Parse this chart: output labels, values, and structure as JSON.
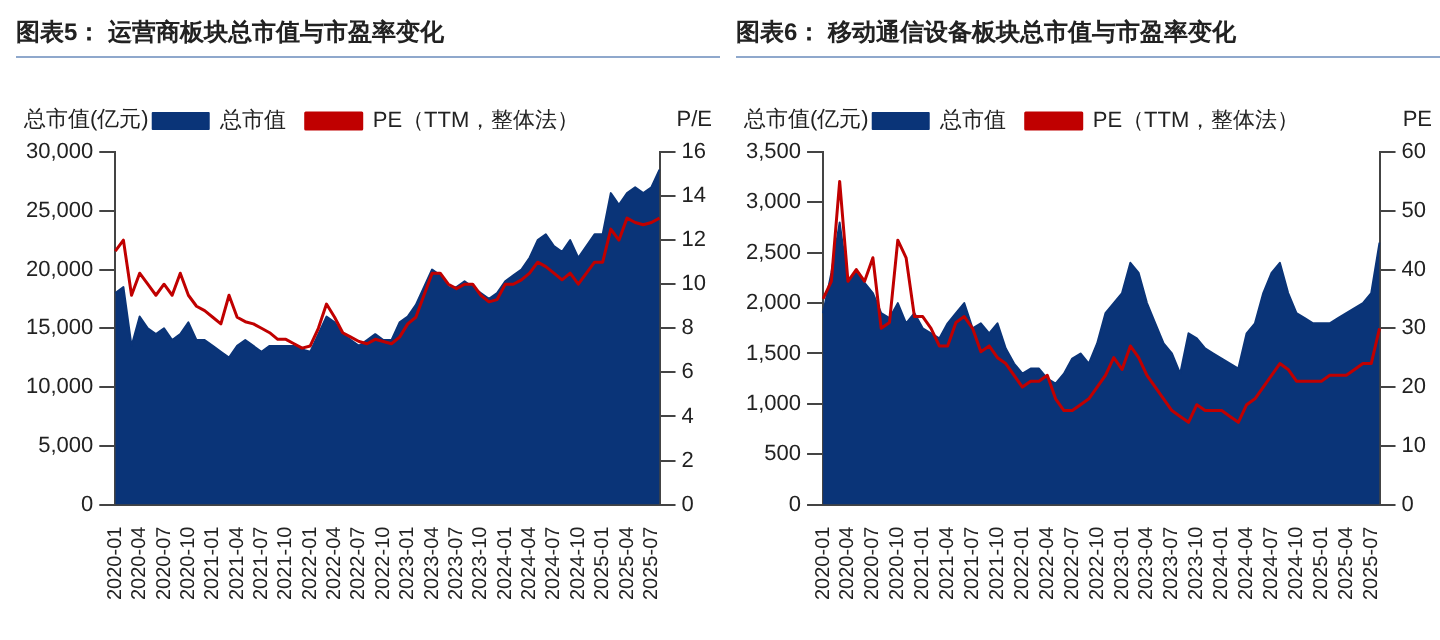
{
  "chart_data": [
    {
      "type": "area",
      "title": "图表5：  运营商板块总市值与市盈率变化",
      "ylabel": "总市值(亿元)",
      "y2label": "P/E",
      "legend": "top",
      "grid": false,
      "marker": "none",
      "categories": [
        "2020-01",
        null,
        null,
        "2020-04",
        null,
        null,
        "2020-07",
        null,
        null,
        "2020-10",
        null,
        null,
        "2021-01",
        null,
        null,
        "2021-04",
        null,
        null,
        "2021-07",
        null,
        null,
        "2021-10",
        null,
        null,
        "2022-01",
        null,
        null,
        "2022-04",
        null,
        null,
        "2022-07",
        null,
        null,
        "2022-10",
        null,
        null,
        "2023-01",
        null,
        null,
        "2023-04",
        null,
        null,
        "2023-07",
        null,
        null,
        "2023-10",
        null,
        null,
        "2024-01",
        null,
        null,
        "2024-04",
        null,
        null,
        "2024-07",
        null,
        null,
        "2024-10",
        null,
        null,
        "2025-01",
        null,
        null,
        "2025-04",
        null,
        null,
        "2025-07",
        null
      ],
      "ylim": [
        0,
        30000
      ],
      "yticks": [
        {
          "value": 0,
          "label": "0"
        },
        {
          "value": 5000,
          "label": "5,000"
        },
        {
          "value": 10000,
          "label": "10,000"
        },
        {
          "value": 15000,
          "label": "15,000"
        },
        {
          "value": 20000,
          "label": "20,000"
        },
        {
          "value": 25000,
          "label": "25,000"
        },
        {
          "value": 30000,
          "label": "30,000"
        }
      ],
      "y2lim": [
        0,
        16
      ],
      "y2ticks": [
        0,
        2,
        4,
        6,
        8,
        10,
        12,
        14,
        16
      ],
      "series": [
        {
          "name": "总市值",
          "type": "area",
          "color": "#0a3478",
          "values": [
            18000,
            18500,
            13500,
            16000,
            15000,
            14500,
            15000,
            14000,
            14500,
            15500,
            14000,
            14000,
            13500,
            13000,
            12500,
            13500,
            14000,
            13500,
            13000,
            13500,
            13500,
            13500,
            13500,
            13200,
            13000,
            14500,
            16000,
            15500,
            14500,
            14000,
            13500,
            14000,
            14500,
            14000,
            14000,
            15500,
            16000,
            17000,
            18500,
            20000,
            19500,
            18500,
            18500,
            19000,
            18500,
            18000,
            17500,
            18000,
            19000,
            19500,
            20000,
            21000,
            22500,
            23000,
            22000,
            21500,
            22500,
            21000,
            22000,
            23000,
            23000,
            26500,
            25500,
            26500,
            27000,
            26500,
            27000,
            28500
          ]
        },
        {
          "name": "PE（TTM，整体法）",
          "type": "line",
          "axis": "y2",
          "color": "#c00000",
          "values": [
            11.5,
            12,
            9.5,
            10.5,
            10,
            9.5,
            10,
            9.5,
            10.5,
            9.5,
            9,
            8.8,
            8.5,
            8.2,
            9.5,
            8.5,
            8.3,
            8.2,
            8,
            7.8,
            7.5,
            7.5,
            7.3,
            7.1,
            7.2,
            8,
            9.1,
            8.5,
            7.8,
            7.6,
            7.4,
            7.3,
            7.5,
            7.4,
            7.3,
            7.6,
            8.2,
            8.5,
            9.5,
            10.5,
            10.5,
            10,
            9.8,
            10,
            10,
            9.5,
            9.2,
            9.3,
            10,
            10,
            10.2,
            10.5,
            11,
            10.8,
            10.5,
            10.2,
            10.5,
            10,
            10.5,
            11,
            11,
            12.5,
            12,
            13,
            12.8,
            12.7,
            12.8,
            13
          ]
        }
      ]
    },
    {
      "type": "area",
      "title": "图表6：  移动通信设备板块总市值与市盈率变化",
      "ylabel": "总市值(亿元)",
      "y2label": "PE",
      "legend": "top",
      "grid": false,
      "marker": "none",
      "categories": [
        "2020-01",
        null,
        null,
        "2020-04",
        null,
        null,
        "2020-07",
        null,
        null,
        "2020-10",
        null,
        null,
        "2021-01",
        null,
        null,
        "2021-04",
        null,
        null,
        "2021-07",
        null,
        null,
        "2021-10",
        null,
        null,
        "2022-01",
        null,
        null,
        "2022-04",
        null,
        null,
        "2022-07",
        null,
        null,
        "2022-10",
        null,
        null,
        "2023-01",
        null,
        null,
        "2023-04",
        null,
        null,
        "2023-07",
        null,
        null,
        "2023-10",
        null,
        null,
        "2024-01",
        null,
        null,
        "2024-04",
        null,
        null,
        "2024-07",
        null,
        null,
        "2024-10",
        null,
        null,
        "2025-01",
        null,
        null,
        "2025-04",
        null,
        null,
        "2025-07",
        null
      ],
      "ylim": [
        0,
        3500
      ],
      "yticks": [
        {
          "value": 0,
          "label": "0"
        },
        {
          "value": 500,
          "label": "500"
        },
        {
          "value": 1000,
          "label": "1,000"
        },
        {
          "value": 1500,
          "label": "1,500"
        },
        {
          "value": 2000,
          "label": "2,000"
        },
        {
          "value": 2500,
          "label": "2,500"
        },
        {
          "value": 3000,
          "label": "3,000"
        },
        {
          "value": 3500,
          "label": "3,500"
        }
      ],
      "y2lim": [
        0,
        60
      ],
      "y2ticks": [
        0,
        10,
        20,
        30,
        40,
        50,
        60
      ],
      "series": [
        {
          "name": "总市值",
          "type": "area",
          "color": "#0a3478",
          "values": [
            1900,
            2300,
            2800,
            2200,
            2300,
            2200,
            2100,
            1900,
            1850,
            2000,
            1800,
            1900,
            1750,
            1700,
            1650,
            1800,
            1900,
            2000,
            1750,
            1800,
            1700,
            1800,
            1550,
            1400,
            1300,
            1350,
            1350,
            1250,
            1200,
            1300,
            1450,
            1500,
            1400,
            1600,
            1900,
            2000,
            2100,
            2400,
            2300,
            2000,
            1800,
            1600,
            1500,
            1300,
            1700,
            1650,
            1550,
            1500,
            1450,
            1400,
            1350,
            1700,
            1800,
            2100,
            2300,
            2400,
            2100,
            1900,
            1850,
            1800,
            1800,
            1800,
            1850,
            1900,
            1950,
            2000,
            2100,
            2600
          ]
        },
        {
          "name": "PE（TTM，整体法）",
          "type": "line",
          "axis": "y2",
          "color": "#c00000",
          "values": [
            35,
            38,
            55,
            38,
            40,
            38,
            42,
            30,
            31,
            45,
            42,
            32,
            32,
            30,
            27,
            27,
            31,
            32,
            30,
            26,
            27,
            25,
            24,
            22,
            20,
            21,
            21,
            22,
            18,
            16,
            16,
            17,
            18,
            20,
            22,
            25,
            23,
            27,
            25,
            22,
            20,
            18,
            16,
            15,
            14,
            17,
            16,
            16,
            16,
            15,
            14,
            17,
            18,
            20,
            22,
            24,
            23,
            21,
            21,
            21,
            21,
            22,
            22,
            22,
            23,
            24,
            24,
            30
          ]
        }
      ]
    }
  ]
}
